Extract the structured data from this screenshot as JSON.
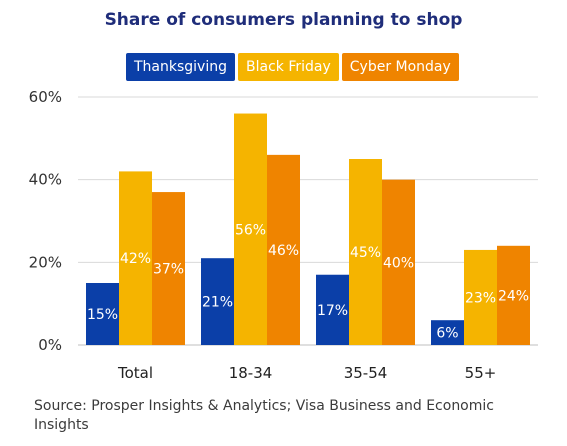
{
  "chart_data": {
    "type": "bar",
    "title": "Share of consumers planning to shop",
    "categories": [
      "Total",
      "18-34",
      "35-54",
      "55+"
    ],
    "series": [
      {
        "name": "Thanksgiving",
        "color": "#0b3fa8",
        "values": [
          15,
          21,
          17,
          6
        ]
      },
      {
        "name": "Black Friday",
        "color": "#f5b400",
        "values": [
          42,
          56,
          45,
          23
        ]
      },
      {
        "name": "Cyber Monday",
        "color": "#ef8400",
        "values": [
          37,
          46,
          40,
          24
        ]
      }
    ],
    "value_labels": [
      [
        "15%",
        "21%",
        "17%",
        "6%"
      ],
      [
        "42%",
        "56%",
        "45%",
        "23%"
      ],
      [
        "37%",
        "46%",
        "40%",
        "24%"
      ]
    ],
    "ylim": [
      0,
      60
    ],
    "yticks": [
      0,
      20,
      40,
      60
    ],
    "ytick_labels": [
      "0%",
      "20%",
      "40%",
      "60%"
    ],
    "grid": true,
    "legend_position": "top"
  },
  "source": "Source: Prosper Insights & Analytics; Visa Business and Economic Insights"
}
